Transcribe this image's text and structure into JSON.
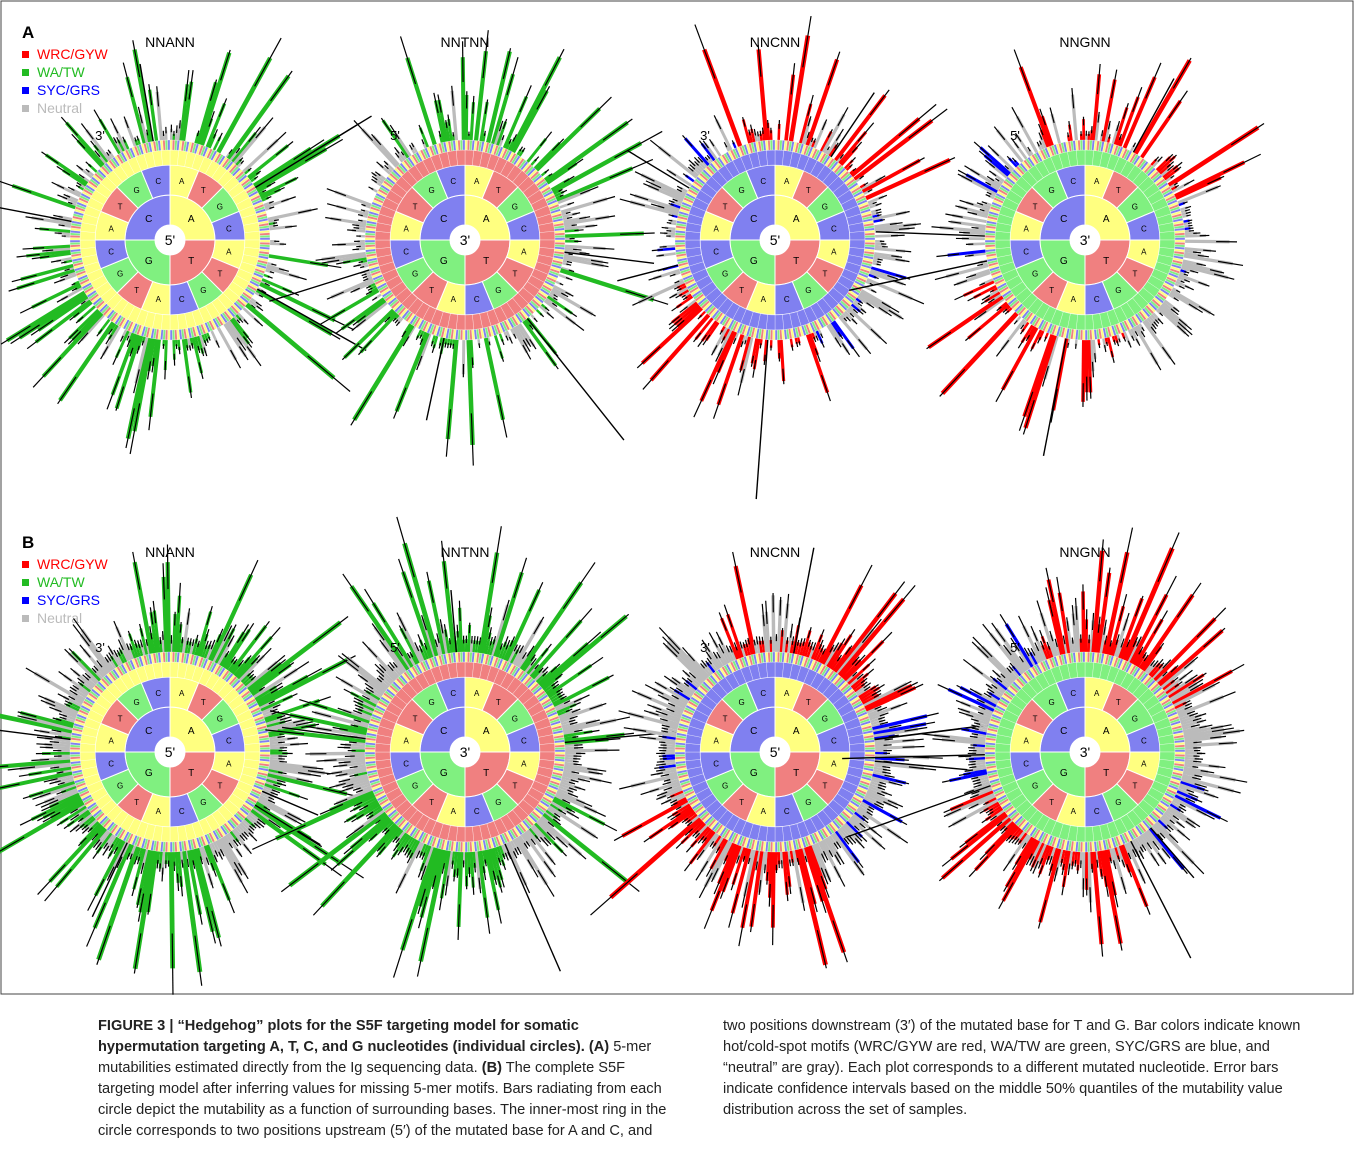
{
  "ring_bases": [
    "A",
    "T",
    "G",
    "C"
  ],
  "legend": [
    "WRC/GYW",
    "WA/TW",
    "SYC/GRS",
    "Neutral"
  ],
  "panels": [
    {
      "label": "A",
      "plots": [
        {
          "title": "NNANN",
          "center": "5'",
          "side": "3'"
        },
        {
          "title": "NNTNN",
          "center": "3'",
          "side": "5'"
        },
        {
          "title": "NNCNN",
          "center": "5'",
          "side": "3'"
        },
        {
          "title": "NNGNN",
          "center": "3'",
          "side": "5'"
        }
      ]
    },
    {
      "label": "B",
      "plots": [
        {
          "title": "NNANN",
          "center": "5'",
          "side": "3'"
        },
        {
          "title": "NNTNN",
          "center": "3'",
          "side": "5'"
        },
        {
          "title": "NNCNN",
          "center": "5'",
          "side": "3'"
        },
        {
          "title": "NNGNN",
          "center": "3'",
          "side": "5'"
        }
      ]
    }
  ],
  "caption": {
    "title": "FIGURE 3 | “Hedgehog” plots for the S5F targeting model for somatic hypermutation targeting A, T, C, and G nucleotides (individual circles).",
    "a_label": "(A)",
    "a_text": "5-mer mutabilities estimated directly from the Ig sequencing data.",
    "b_label": "(B)",
    "b_text": "The complete S5F targeting model after inferring values for missing 5-mer motifs. Bars radiating from each circle depict the mutability as a function of surrounding bases. The inner-most ring in the circle corresponds to two positions upstream (5′) of the mutated base for A and C, and two positions downstream (3′) of the mutated base for T and G. Bar colors indicate known hot/cold-spot motifs (WRC/GYW are red, WA/TW are green, SYC/GRS are blue, and “neutral” are gray). Each plot corresponds to a different mutated nucleotide. Error bars indicate confidence intervals based on the middle 50% quantiles of the mutability value distribution across the set of samples."
  }
}
